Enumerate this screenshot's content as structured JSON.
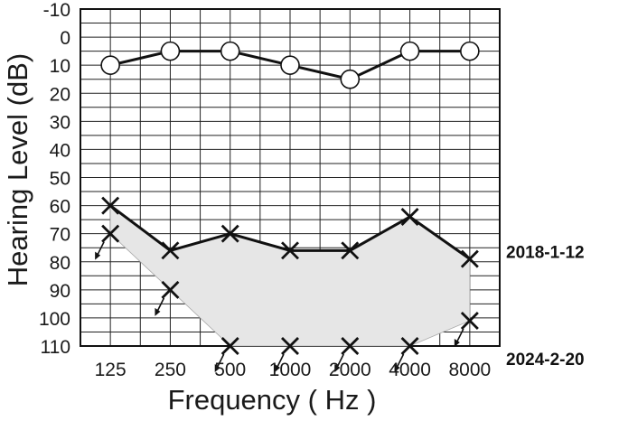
{
  "chart_data": {
    "type": "line",
    "xlabel": "Frequency ( Hz )",
    "ylabel": "Hearing Level (dB)",
    "categories": [
      "125",
      "250",
      "500",
      "1000",
      "2000",
      "4000",
      "8000"
    ],
    "y_ticks": [
      "-10",
      "0",
      "10",
      "20",
      "30",
      "40",
      "50",
      "60",
      "70",
      "80",
      "90",
      "100",
      "110"
    ],
    "ylim": [
      -10,
      110
    ],
    "y_inverted": true,
    "grid": true,
    "shaded_region_color": "#e6e6e6",
    "series": [
      {
        "marker": "circle",
        "connected": true,
        "values": [
          10,
          5,
          5,
          10,
          15,
          5,
          5
        ]
      },
      {
        "name": "2018-1-12",
        "marker": "cross",
        "connected": true,
        "values": [
          60,
          76,
          70,
          76,
          76,
          64,
          79
        ]
      },
      {
        "name": "2024-2-20",
        "marker": "cross-with-arrow",
        "connected": false,
        "values": [
          70,
          90,
          110,
          110,
          110,
          110,
          101
        ]
      }
    ]
  }
}
